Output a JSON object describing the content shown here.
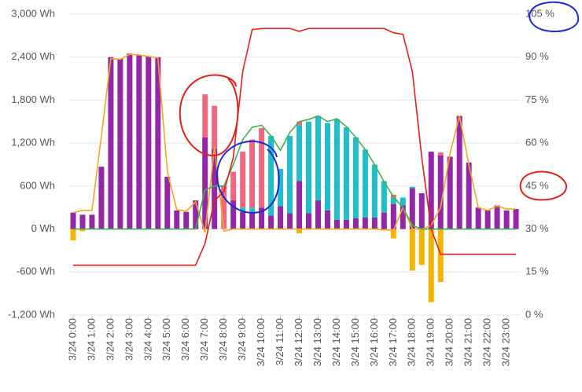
{
  "chart_data": {
    "type": "combo",
    "categories": [
      "3/24 0:00",
      null,
      "3/24 1:00",
      null,
      "3/24 2:00",
      null,
      "3/24 3:00",
      null,
      "3/24 4:00",
      null,
      "3/24 5:00",
      null,
      "3/24 6:00",
      null,
      "3/24 7:00",
      null,
      "3/24 8:00",
      null,
      "3/24 9:00",
      null,
      "3/24 10:00",
      null,
      "3/24 11:00",
      null,
      "3/24 12:00",
      null,
      "3/24 13:00",
      null,
      "3/24 14:00",
      null,
      "3/24 15:00",
      null,
      "3/24 16:00",
      null,
      "3/24 17:00",
      null,
      "3/24 18:00",
      null,
      "3/24 19:00",
      null,
      "3/24 20:00",
      null,
      "3/24 21:00",
      null,
      "3/24 22:00",
      null,
      "3/24 23:00",
      null
    ],
    "series": [
      {
        "type": "bar",
        "color": "#9327a8",
        "values": [
          230,
          200,
          200,
          870,
          2400,
          2380,
          2450,
          2430,
          2410,
          2400,
          730,
          260,
          240,
          400,
          1280,
          1120,
          0,
          400,
          240,
          240,
          300,
          190,
          320,
          220,
          670,
          220,
          400,
          260,
          130,
          130,
          150,
          160,
          160,
          230,
          350,
          330,
          570,
          500,
          1080,
          1030,
          1010,
          1580,
          930,
          300,
          260,
          330,
          260,
          280
        ]
      },
      {
        "type": "bar",
        "color": "#1ebfcb",
        "values": [
          0,
          0,
          0,
          0,
          0,
          0,
          0,
          0,
          0,
          0,
          0,
          0,
          0,
          0,
          0,
          0,
          0,
          0,
          60,
          60,
          0,
          1110,
          520,
          1080,
          780,
          1280,
          1180,
          1220,
          1400,
          1290,
          1130,
          950,
          740,
          440,
          90,
          110,
          20,
          0,
          0,
          0,
          0,
          0,
          0,
          0,
          0,
          0,
          0,
          0
        ]
      },
      {
        "type": "bar",
        "color": "#f0677f",
        "values": [
          0,
          0,
          0,
          0,
          0,
          0,
          0,
          0,
          0,
          0,
          0,
          0,
          0,
          0,
          600,
          600,
          600,
          400,
          780,
          950,
          1110,
          0,
          0,
          0,
          50,
          0,
          0,
          0,
          0,
          0,
          0,
          0,
          0,
          0,
          40,
          0,
          0,
          0,
          0,
          40,
          0,
          0,
          0,
          0,
          0,
          0,
          0,
          0
        ]
      },
      {
        "type": "bar",
        "color": "#f4b400",
        "values": [
          -160,
          -30,
          0,
          0,
          0,
          0,
          0,
          0,
          0,
          0,
          0,
          0,
          0,
          0,
          0,
          0,
          0,
          0,
          0,
          0,
          0,
          0,
          0,
          0,
          -60,
          0,
          0,
          0,
          0,
          0,
          0,
          0,
          0,
          -20,
          -130,
          0,
          -580,
          -500,
          -1020,
          -740,
          0,
          0,
          0,
          0,
          0,
          0,
          0,
          0
        ]
      },
      {
        "type": "line",
        "color": "#f5a623",
        "values": [
          230,
          260,
          260,
          1300,
          2380,
          2370,
          2440,
          2430,
          2410,
          2390,
          800,
          270,
          250,
          380,
          -50,
          1150,
          -30,
          0,
          0,
          0,
          0,
          0,
          0,
          0,
          0,
          0,
          0,
          0,
          0,
          0,
          0,
          0,
          0,
          -10,
          -20,
          300,
          0,
          0,
          50,
          300,
          1050,
          1580,
          900,
          300,
          260,
          320,
          280,
          280
        ]
      },
      {
        "type": "line",
        "color": "#3cb44b",
        "values": [
          0,
          0,
          0,
          0,
          0,
          0,
          0,
          0,
          0,
          0,
          0,
          0,
          0,
          0,
          550,
          600,
          600,
          900,
          1250,
          1420,
          1450,
          1300,
          1100,
          1350,
          1500,
          1530,
          1580,
          1500,
          1540,
          1430,
          1280,
          1110,
          900,
          660,
          450,
          300,
          50,
          0,
          0,
          0,
          0,
          0,
          0,
          0,
          0,
          0,
          0,
          0
        ]
      },
      {
        "type": "line",
        "axis": "y2",
        "color": "#e0201a",
        "values": [
          17.4,
          17.4,
          17.4,
          17.4,
          17.4,
          17.4,
          17.4,
          17.4,
          17.4,
          17.4,
          17.4,
          17.4,
          17.4,
          17.4,
          25,
          40,
          43,
          55,
          85,
          99.6,
          100,
          100,
          100,
          100,
          99,
          100,
          100,
          100,
          100,
          100,
          100,
          100,
          100,
          100,
          98.5,
          98,
          85,
          55,
          30,
          21.2,
          21.2,
          21.2,
          21.2,
          21.2,
          21.2,
          21.2,
          21.2,
          21.2
        ]
      }
    ],
    "ylim": [
      -1200,
      3000
    ],
    "yticks": [
      {
        "value": -1200,
        "label": "-1,200 Wh"
      },
      {
        "value": -600,
        "label": "-600 Wh"
      },
      {
        "value": 0,
        "label": "0 Wh"
      },
      {
        "value": 600,
        "label": "600 Wh"
      },
      {
        "value": 1200,
        "label": "1,200 Wh"
      },
      {
        "value": 1800,
        "label": "1,800 Wh"
      },
      {
        "value": 2400,
        "label": "2,400 Wh"
      },
      {
        "value": 3000,
        "label": "3,000 Wh"
      }
    ],
    "y2lim": [
      0,
      105
    ],
    "y2ticks": [
      {
        "value": 0,
        "label": "0 %"
      },
      {
        "value": 15,
        "label": "15 %"
      },
      {
        "value": 30,
        "label": "30 %"
      },
      {
        "value": 45,
        "label": "45 %"
      },
      {
        "value": 60,
        "label": "60 %"
      },
      {
        "value": 75,
        "label": "75 %"
      },
      {
        "value": 90,
        "label": "90 %"
      },
      {
        "value": 105,
        "label": "105 %"
      }
    ],
    "grid": true
  }
}
